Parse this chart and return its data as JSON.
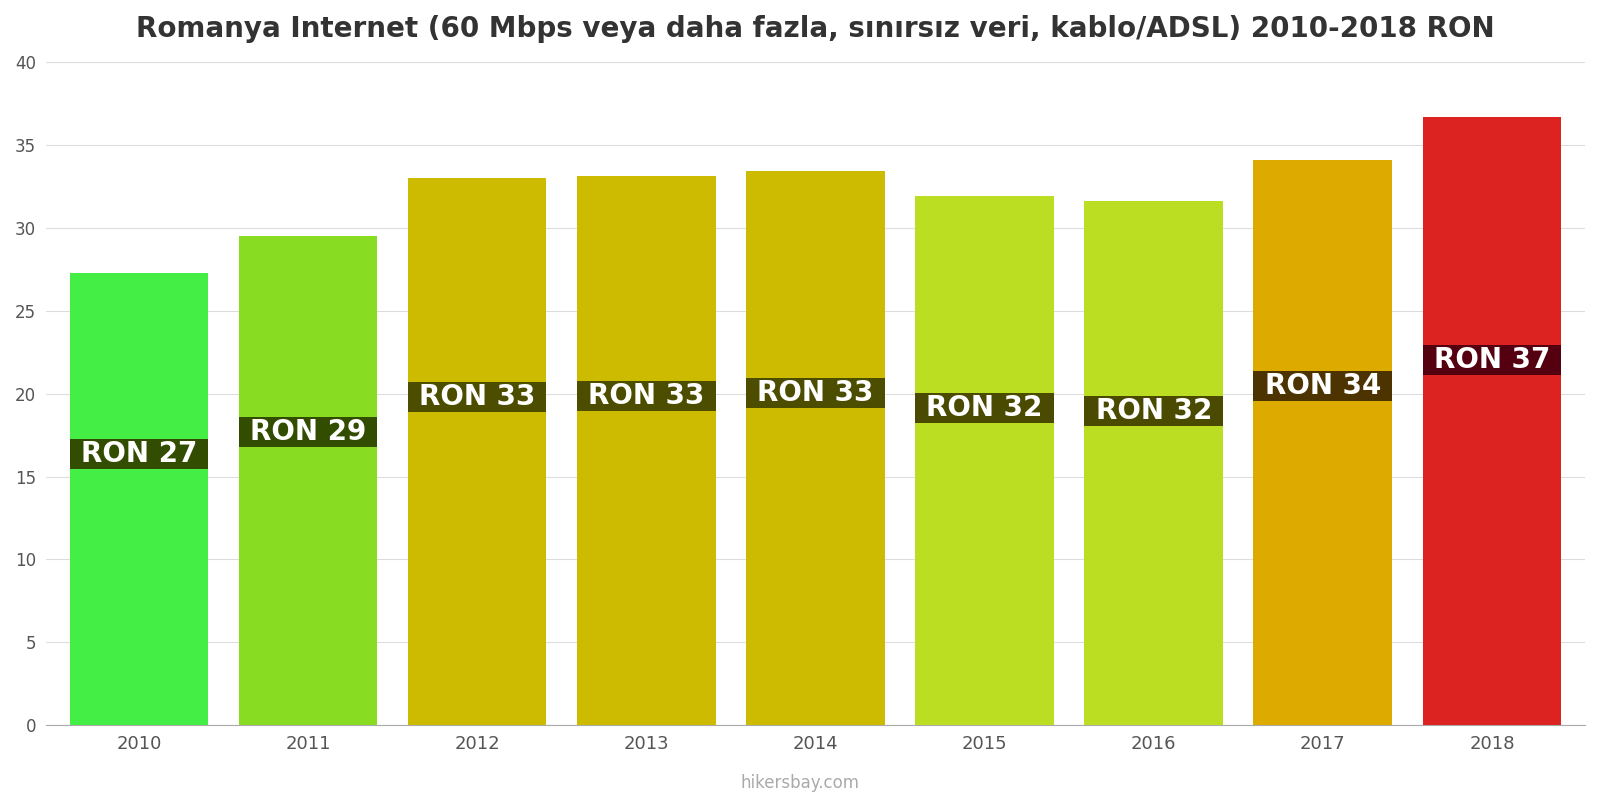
{
  "title": "Romanya Internet (60 Mbps veya daha fazla, sınırsız veri, kablo/ADSL) 2010-2018 RON",
  "years": [
    2010,
    2011,
    2012,
    2013,
    2014,
    2015,
    2016,
    2017,
    2018
  ],
  "values": [
    27.3,
    29.5,
    33.0,
    33.1,
    33.4,
    31.9,
    31.6,
    34.1,
    36.7
  ],
  "labels": [
    "RON 27",
    "RON 29",
    "RON 33",
    "RON 33",
    "RON 33",
    "RON 32",
    "RON 32",
    "RON 34",
    "RON 37"
  ],
  "bar_colors": [
    "#44ee44",
    "#88dd22",
    "#ccbb00",
    "#ccbb00",
    "#ccbb00",
    "#bbdd22",
    "#bbdd22",
    "#ddaa00",
    "#dd2222"
  ],
  "label_bg_colors": [
    "#334d00",
    "#334d00",
    "#4d4d00",
    "#4d4d00",
    "#4d4d00",
    "#4a4a00",
    "#4a4a00",
    "#4d3300",
    "#550011"
  ],
  "ylim": [
    0,
    40
  ],
  "yticks": [
    0,
    5,
    10,
    15,
    20,
    25,
    30,
    35,
    40
  ],
  "watermark": "hikersbay.com",
  "title_fontsize": 20,
  "label_fontsize": 20,
  "background_color": "#ffffff",
  "bar_width": 0.82
}
